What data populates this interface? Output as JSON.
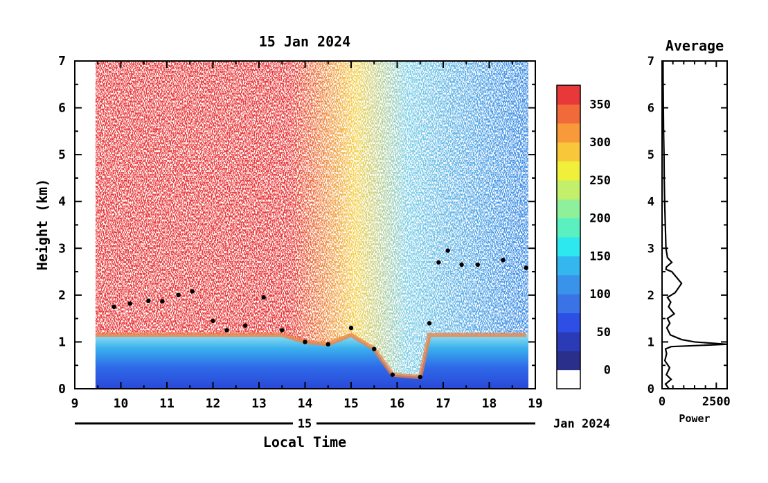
{
  "chart_data": [
    {
      "type": "heatmap",
      "title": "15 Jan 2024",
      "xlabel": "Local Time",
      "ylabel": "Height (km)",
      "xlim": [
        9,
        19
      ],
      "ylim": [
        0,
        7
      ],
      "x_ticks": [
        "9",
        "10",
        "11",
        "12",
        "13",
        "14",
        "15",
        "16",
        "17",
        "18",
        "19"
      ],
      "y_ticks": [
        "0",
        "1",
        "2",
        "3",
        "4",
        "5",
        "6",
        "7"
      ],
      "date_axis_day": "15",
      "date_axis_month": "Jan 2024",
      "data_time_range": [
        9.45,
        18.85
      ],
      "colorbar": {
        "range": [
          -25,
          375
        ],
        "tick_labels": [
          "0",
          "50",
          "100",
          "150",
          "200",
          "250",
          "300",
          "350"
        ],
        "tick_values": [
          0,
          50,
          100,
          150,
          200,
          250,
          300,
          350
        ],
        "colors": [
          "#ffffff",
          "#2a2f8c",
          "#2b3bb8",
          "#2d4fe6",
          "#3a73e6",
          "#3a93ea",
          "#33b7ee",
          "#2ee8f0",
          "#5af0c0",
          "#8ef09a",
          "#c2f06a",
          "#f0f03a",
          "#f8c83a",
          "#f89a3a",
          "#f06a3a",
          "#e8383a"
        ]
      },
      "boundary_layer_top_km": [
        [
          9.85,
          1.75
        ],
        [
          10.2,
          1.82
        ],
        [
          10.6,
          1.88
        ],
        [
          10.9,
          1.87
        ],
        [
          11.25,
          2.0
        ],
        [
          11.55,
          2.08
        ],
        [
          12.0,
          1.45
        ],
        [
          12.3,
          1.25
        ],
        [
          12.7,
          1.35
        ],
        [
          13.1,
          1.95
        ],
        [
          13.5,
          1.25
        ],
        [
          14.0,
          1.0
        ],
        [
          14.5,
          0.95
        ],
        [
          15.0,
          1.3
        ],
        [
          15.5,
          0.85
        ],
        [
          15.9,
          0.3
        ],
        [
          16.5,
          0.25
        ],
        [
          16.7,
          1.4
        ],
        [
          16.9,
          2.7
        ],
        [
          17.1,
          2.95
        ],
        [
          17.4,
          2.65
        ],
        [
          17.75,
          2.65
        ],
        [
          18.3,
          2.75
        ],
        [
          18.8,
          2.58
        ]
      ]
    },
    {
      "type": "line",
      "title": "Average",
      "xlabel": "Power",
      "ylabel": "",
      "xlim": [
        0,
        3000
      ],
      "ylim": [
        0,
        7
      ],
      "x_ticks": [
        "0",
        "2500"
      ],
      "y_ticks": [
        "0",
        "1",
        "2",
        "3",
        "4",
        "5",
        "6",
        "7"
      ],
      "series": [
        {
          "x": [
            320,
            160,
            420,
            200,
            350,
            130,
            210,
            160,
            420,
            3000,
            1500,
            900,
            380,
            220,
            360,
            250,
            560,
            300,
            400,
            250,
            600,
            900,
            450,
            180,
            200,
            450,
            250,
            180,
            150,
            120,
            100,
            90,
            70,
            60,
            50,
            45
          ],
          "y": [
            0.0,
            0.1,
            0.2,
            0.3,
            0.45,
            0.6,
            0.75,
            0.85,
            0.9,
            0.95,
            1.0,
            1.05,
            1.15,
            1.3,
            1.4,
            1.5,
            1.6,
            1.75,
            1.85,
            1.95,
            2.05,
            2.25,
            2.5,
            2.55,
            2.6,
            2.7,
            2.8,
            3.0,
            3.5,
            4.0,
            4.5,
            5.0,
            5.5,
            6.0,
            6.5,
            7.0
          ]
        }
      ]
    }
  ]
}
